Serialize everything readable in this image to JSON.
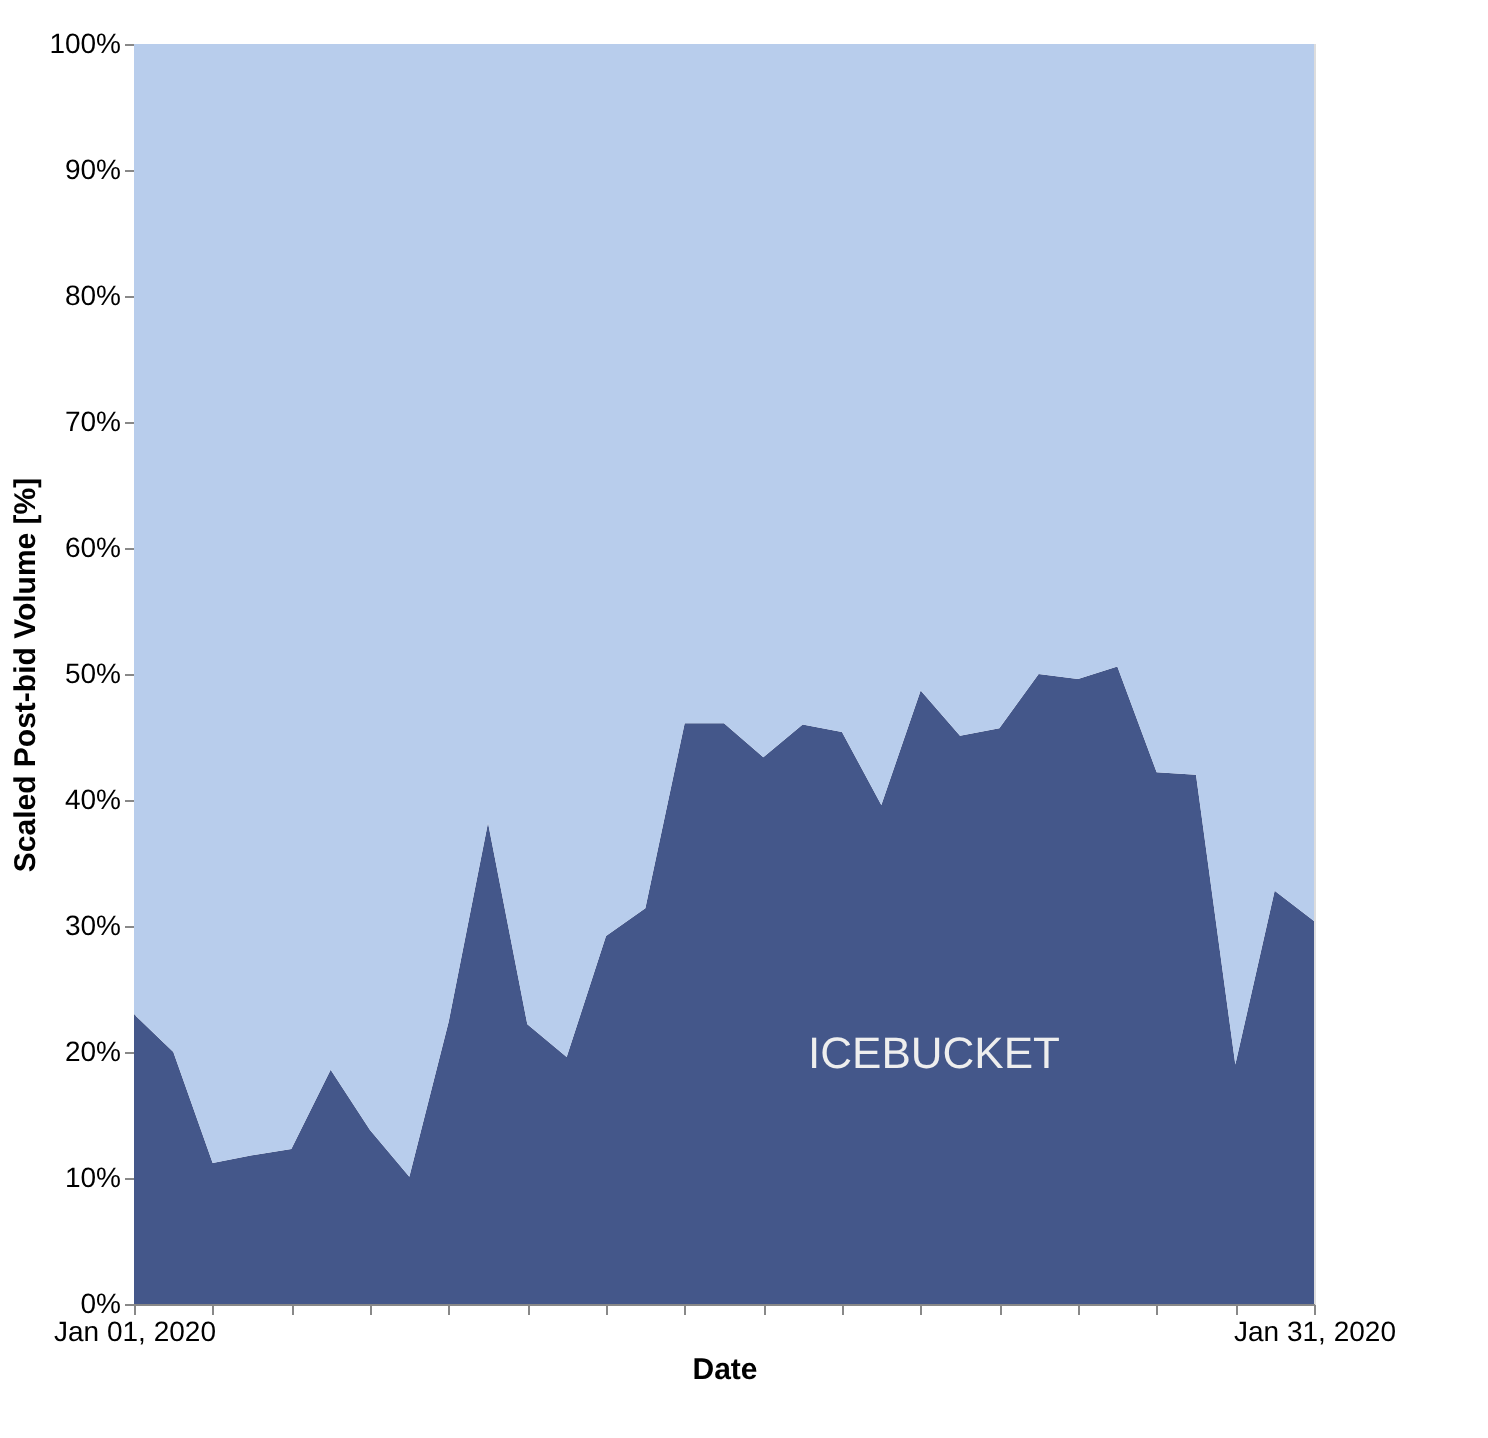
{
  "chart_data": {
    "type": "area",
    "stacked": true,
    "xlabel": "Date",
    "ylabel": "Scaled Post-bid Volume [%]",
    "x": [
      "2020-01-01",
      "2020-01-02",
      "2020-01-03",
      "2020-01-04",
      "2020-01-05",
      "2020-01-06",
      "2020-01-07",
      "2020-01-08",
      "2020-01-09",
      "2020-01-10",
      "2020-01-11",
      "2020-01-12",
      "2020-01-13",
      "2020-01-14",
      "2020-01-15",
      "2020-01-16",
      "2020-01-17",
      "2020-01-18",
      "2020-01-19",
      "2020-01-20",
      "2020-01-21",
      "2020-01-22",
      "2020-01-23",
      "2020-01-24",
      "2020-01-25",
      "2020-01-26",
      "2020-01-27",
      "2020-01-28",
      "2020-01-29",
      "2020-01-30",
      "2020-01-31"
    ],
    "series": [
      {
        "name": "ICEBUCKET",
        "color": "#44578a",
        "values": [
          23.0,
          20.0,
          11.2,
          11.8,
          12.3,
          18.6,
          13.8,
          10.1,
          22.4,
          38.2,
          22.2,
          19.6,
          29.2,
          31.4,
          46.1,
          46.1,
          43.4,
          46.0,
          45.4,
          39.6,
          48.7,
          45.1,
          45.7,
          50.0,
          49.6,
          50.6,
          42.2,
          42.0,
          19.0,
          32.8,
          30.4
        ]
      },
      {
        "color": "#b8cdec",
        "values": [
          77.0,
          80.0,
          88.8,
          88.2,
          87.7,
          81.4,
          86.2,
          89.9,
          77.6,
          61.8,
          77.8,
          80.4,
          70.8,
          68.6,
          53.9,
          53.9,
          56.6,
          54.0,
          54.6,
          60.4,
          51.3,
          54.9,
          54.3,
          50.0,
          50.4,
          49.4,
          57.8,
          58.0,
          81.0,
          67.2,
          69.6
        ]
      }
    ],
    "xlim": [
      "2020-01-01",
      "2020-01-31"
    ],
    "xticks": [
      {
        "value": "2020-01-01",
        "label": "Jan 01, 2020"
      },
      {
        "value": "2020-01-03",
        "label": null
      },
      {
        "value": "2020-01-05",
        "label": null
      },
      {
        "value": "2020-01-07",
        "label": null
      },
      {
        "value": "2020-01-09",
        "label": null
      },
      {
        "value": "2020-01-11",
        "label": null
      },
      {
        "value": "2020-01-13",
        "label": null
      },
      {
        "value": "2020-01-15",
        "label": null
      },
      {
        "value": "2020-01-17",
        "label": null
      },
      {
        "value": "2020-01-19",
        "label": null
      },
      {
        "value": "2020-01-21",
        "label": null
      },
      {
        "value": "2020-01-23",
        "label": null
      },
      {
        "value": "2020-01-25",
        "label": null
      },
      {
        "value": "2020-01-27",
        "label": null
      },
      {
        "value": "2020-01-29",
        "label": null
      },
      {
        "value": "2020-01-31",
        "label": "Jan 31, 2020"
      }
    ],
    "ylim": [
      0,
      100
    ],
    "yticks": [
      {
        "value": 0,
        "label": "0%"
      },
      {
        "value": 10,
        "label": "10%"
      },
      {
        "value": 20,
        "label": "20%"
      },
      {
        "value": 30,
        "label": "30%"
      },
      {
        "value": 40,
        "label": "40%"
      },
      {
        "value": 50,
        "label": "50%"
      },
      {
        "value": 60,
        "label": "60%"
      },
      {
        "value": 70,
        "label": "70%"
      },
      {
        "value": 80,
        "label": "80%"
      },
      {
        "value": 90,
        "label": "90%"
      },
      {
        "value": 100,
        "label": "100%"
      }
    ],
    "grid": false
  }
}
